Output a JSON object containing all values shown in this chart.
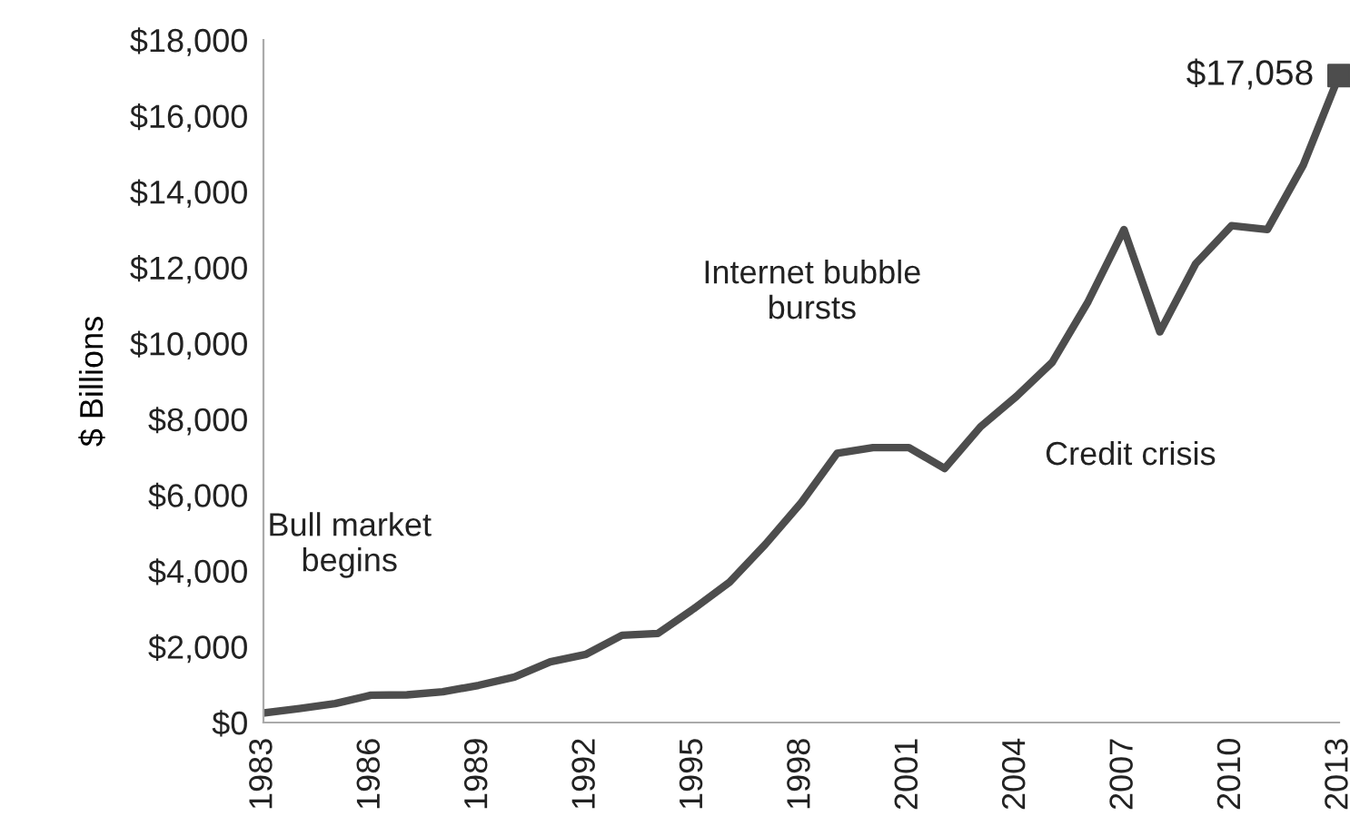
{
  "chart_data": {
    "type": "line",
    "ylabel": "$ Billions",
    "x": [
      1983,
      1984,
      1985,
      1986,
      1987,
      1988,
      1989,
      1990,
      1991,
      1992,
      1993,
      1994,
      1995,
      1996,
      1997,
      1998,
      1999,
      2000,
      2001,
      2002,
      2003,
      2004,
      2005,
      2006,
      2007,
      2008,
      2009,
      2010,
      2011,
      2012,
      2013
    ],
    "series": [
      {
        "color": "#4d4d4d",
        "values": [
          250,
          370,
          500,
          720,
          730,
          810,
          980,
          1200,
          1600,
          1800,
          2300,
          2350,
          3000,
          3700,
          4700,
          5800,
          7100,
          7250,
          7250,
          6700,
          7800,
          8600,
          9500,
          11100,
          13000,
          10300,
          12100,
          13100,
          13000,
          14700,
          17058
        ]
      },
      {
        "type": "scatter",
        "marker": "square",
        "color": "#4d4d4d",
        "x": [
          2013
        ],
        "values": [
          17058
        ]
      }
    ],
    "xlim": [
      1983,
      2013
    ],
    "xticks": [
      1983,
      1986,
      1989,
      1992,
      1995,
      1998,
      2001,
      2004,
      2007,
      2010,
      2013
    ],
    "ylim": [
      0,
      18000
    ],
    "yticks": [
      {
        "value": 0,
        "label": "$0"
      },
      {
        "value": 2000,
        "label": "$2,000"
      },
      {
        "value": 4000,
        "label": "$4,000"
      },
      {
        "value": 6000,
        "label": "$6,000"
      },
      {
        "value": 8000,
        "label": "$8,000"
      },
      {
        "value": 10000,
        "label": "$10,000"
      },
      {
        "value": 12000,
        "label": "$12,000"
      },
      {
        "value": 14000,
        "label": "$14,000"
      },
      {
        "value": 16000,
        "label": "$16,000"
      },
      {
        "value": 18000,
        "label": "$18,000"
      }
    ],
    "grid": false,
    "legend": false,
    "marker": "none",
    "annotations": [
      "Bull market\nbegins",
      "Internet bubble\nbursts",
      "Credit crisis",
      {
        "text": "$17,058",
        "x": 2013,
        "y": 17058
      }
    ]
  }
}
